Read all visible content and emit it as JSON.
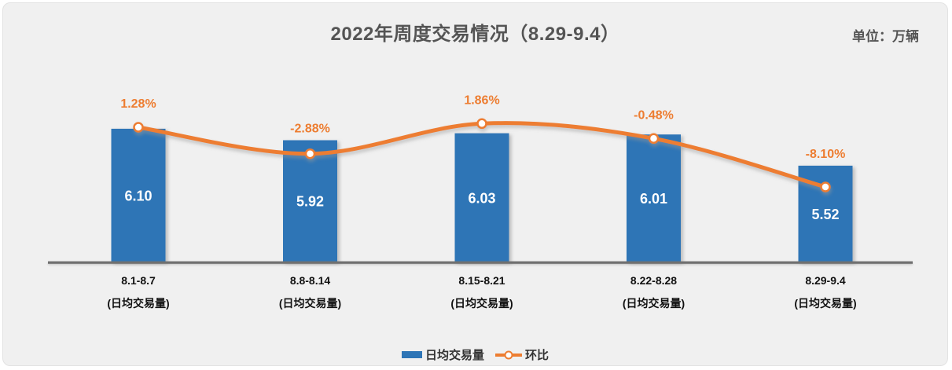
{
  "chart_data": {
    "type": "bar+line",
    "title": "2022年周度交易情况（8.29-9.4）",
    "unit": "单位：万辆",
    "categories": [
      "8.1-8.7",
      "8.8-8.14",
      "8.15-8.21",
      "8.22-8.28",
      "8.29-9.4"
    ],
    "category_sublabel": "(日均交易量)",
    "series": [
      {
        "name": "日均交易量",
        "type": "bar",
        "values": [
          6.1,
          5.92,
          6.03,
          6.01,
          5.52
        ],
        "labels": [
          "6.10",
          "5.92",
          "6.03",
          "6.01",
          "5.52"
        ],
        "color": "#2E75B6",
        "value_label_color": "#FFFFFF"
      },
      {
        "name": "环比",
        "type": "line",
        "unit": "%",
        "values": [
          1.28,
          -2.88,
          1.86,
          -0.48,
          -8.1
        ],
        "labels": [
          "1.28%",
          "-2.88%",
          "1.86%",
          "-0.48%",
          "-8.10%"
        ],
        "color": "#ED7D31",
        "marker": "circle-white-fill-orange-ring"
      }
    ],
    "primary_axis": {
      "min": 4.0,
      "visible": false
    },
    "secondary_axis": {
      "visible": false
    },
    "grid": false,
    "legend_position": "bottom",
    "x_axis_line_color": "#707070",
    "x_label_color": "#111111",
    "background_color": "#F0F0F0"
  }
}
